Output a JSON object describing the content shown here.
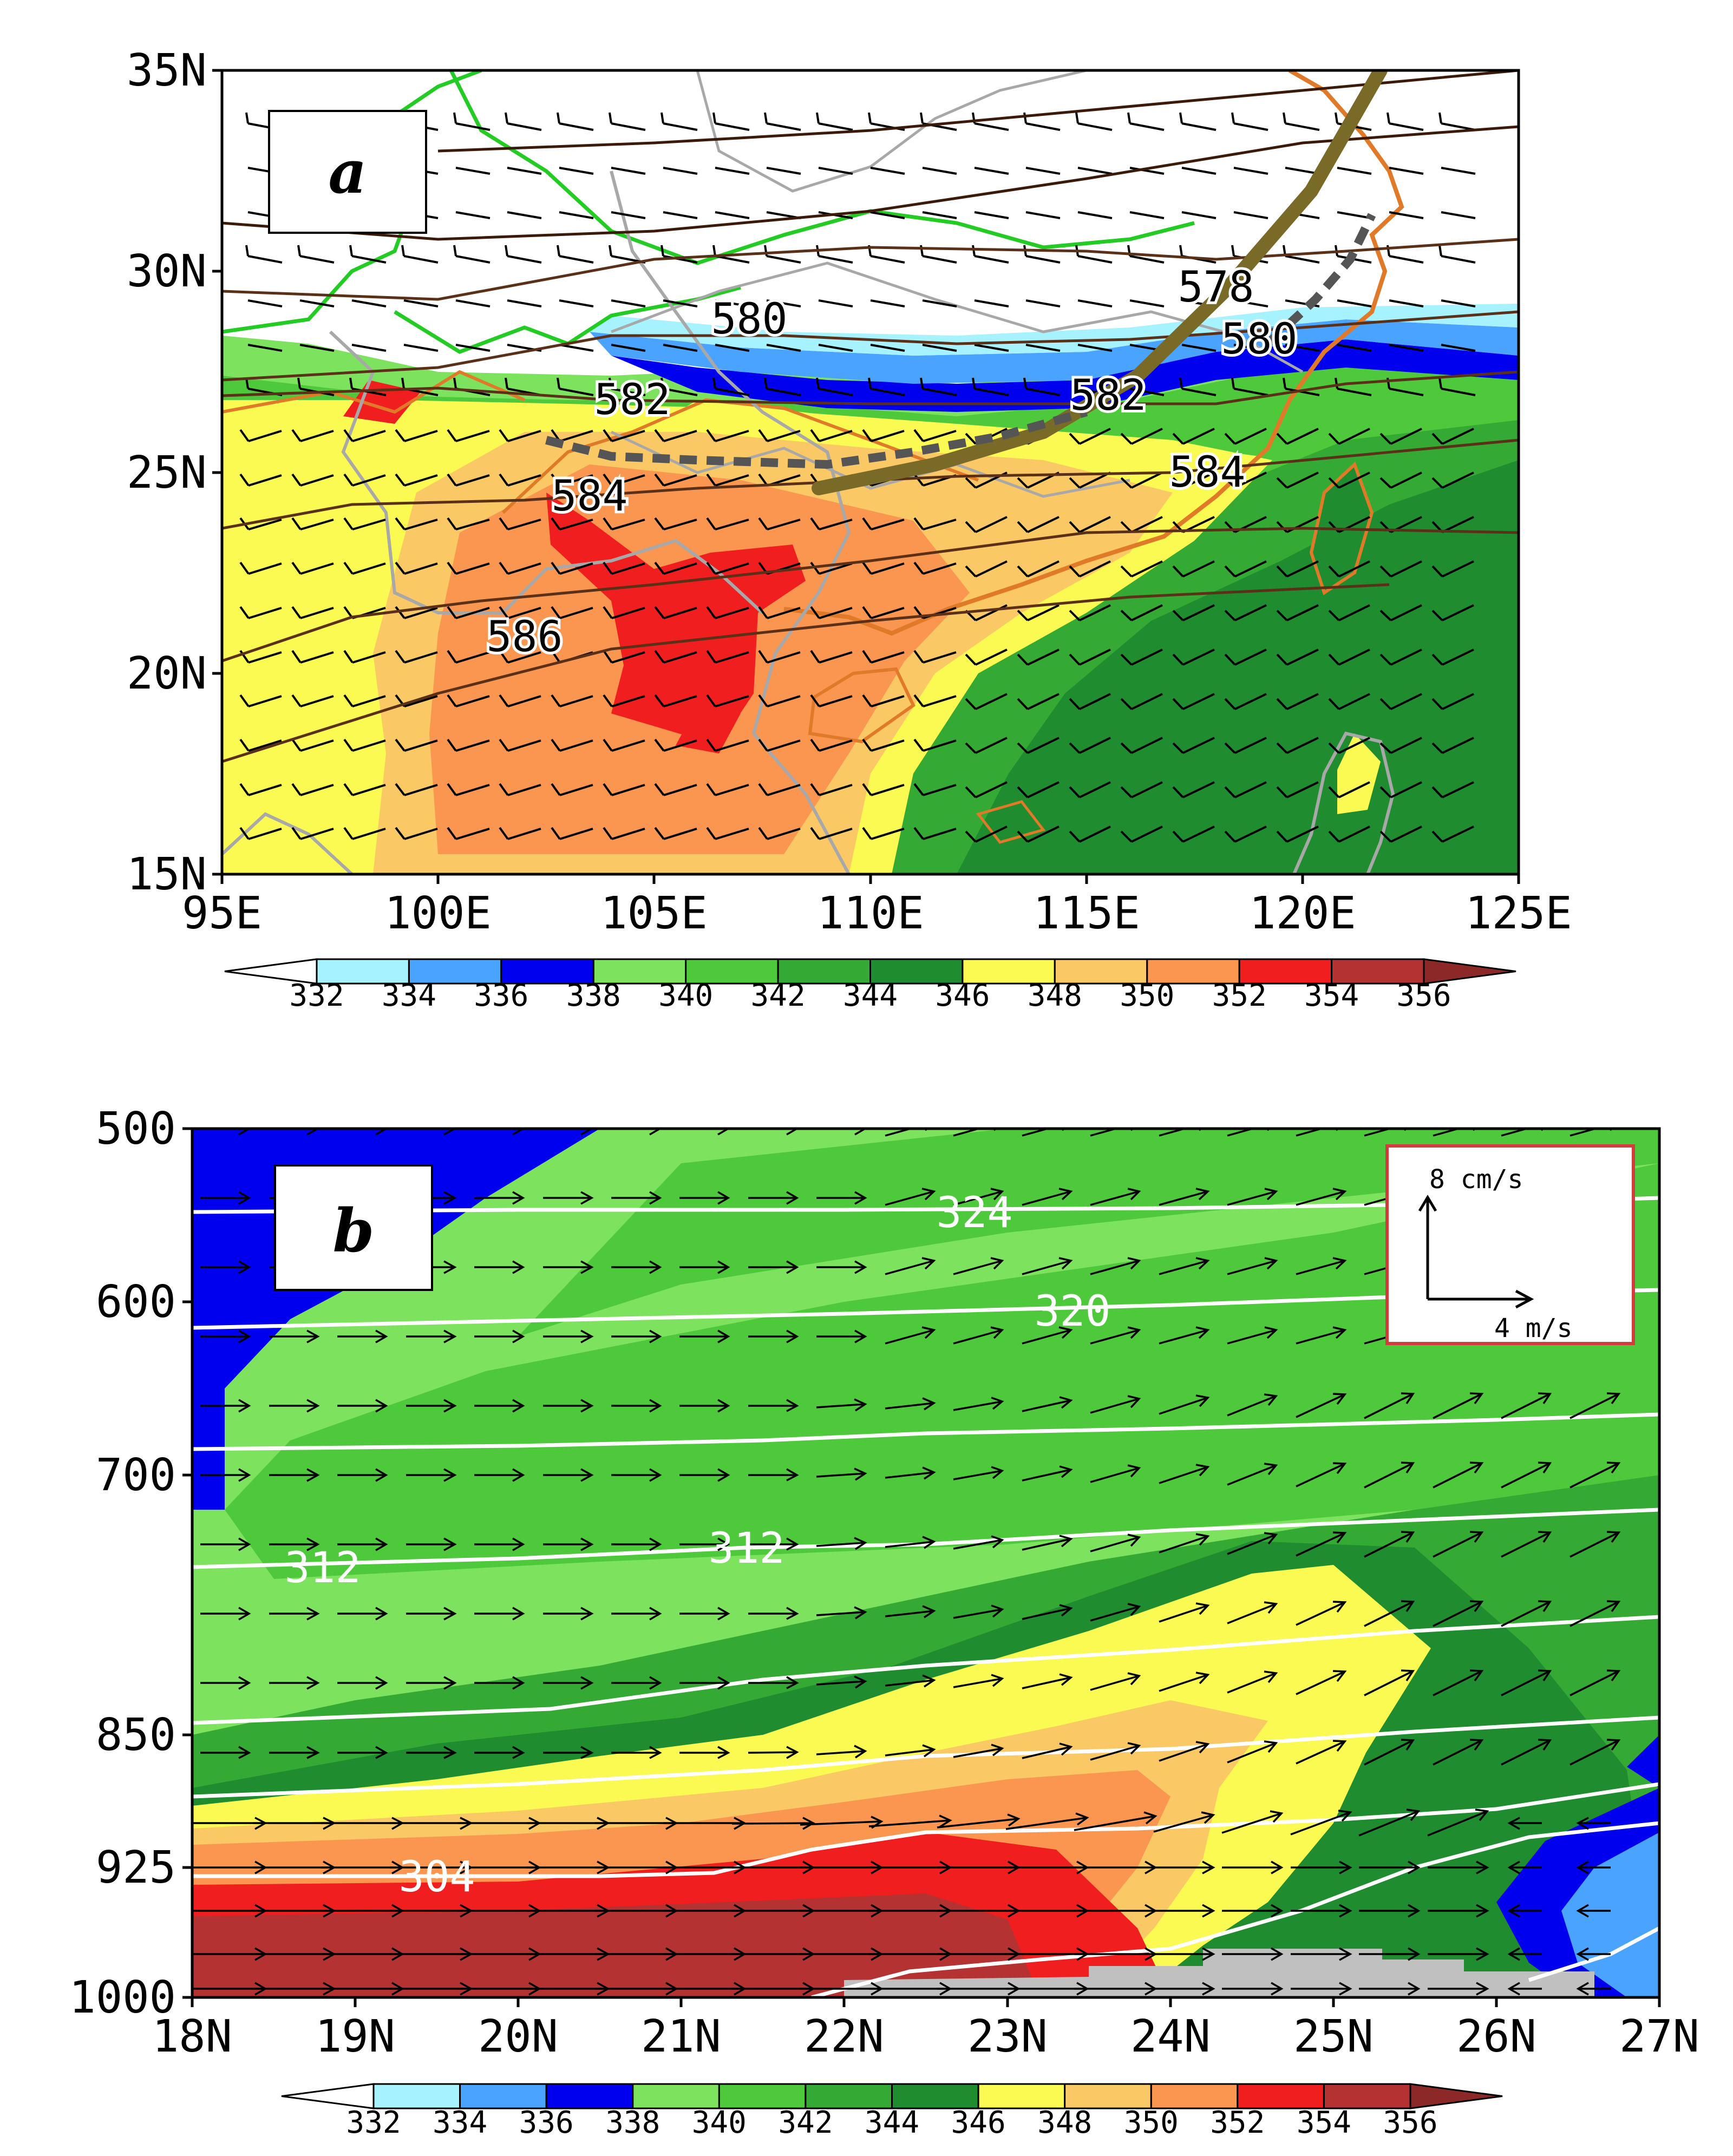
{
  "panel_a": {
    "label": "a",
    "lat_ticks": [
      "15N",
      "20N",
      "25N",
      "30N",
      "35N"
    ],
    "lon_ticks": [
      "95E",
      "100E",
      "105E",
      "110E",
      "115E",
      "120E",
      "125E"
    ],
    "contour_labels": [
      "578",
      "580",
      "580",
      "582",
      "582",
      "584",
      "584",
      "586"
    ],
    "colorbar_ticks": [
      "332",
      "334",
      "336",
      "338",
      "340",
      "342",
      "344",
      "346",
      "348",
      "350",
      "352",
      "354",
      "356"
    ]
  },
  "panel_b": {
    "label": "b",
    "pressure_ticks": [
      "500",
      "600",
      "700",
      "850",
      "925",
      "1000"
    ],
    "lat_ticks": [
      "18N",
      "19N",
      "20N",
      "21N",
      "22N",
      "23N",
      "24N",
      "25N",
      "26N",
      "27N"
    ],
    "contour_labels": [
      "324",
      "320",
      "312",
      "312",
      "304"
    ],
    "vector_key": {
      "vertical": "8 cm/s",
      "horizontal": "4 m/s"
    },
    "colorbar_ticks": [
      "332",
      "334",
      "336",
      "338",
      "340",
      "342",
      "344",
      "346",
      "348",
      "350",
      "352",
      "354",
      "356"
    ]
  },
  "colors": {
    "under": "#ffffff",
    "levels": [
      "#a6f2ff",
      "#4aa4ff",
      "#0000ee",
      "#7de35f",
      "#4fc93c",
      "#34aa34",
      "#1e8c2f",
      "#fafa52",
      "#fac864",
      "#fa9650",
      "#f01e1e",
      "#b43232"
    ],
    "over": "#8c2828",
    "terrain": "#c0c0c0",
    "trough": "#7a6a28",
    "height_contour": "#5a3018",
    "coast": "#e07a28",
    "plateau": "#22cc22",
    "border": "#a8a8a8",
    "key_box": "#d23c3c"
  },
  "chart_data": [
    {
      "type": "heatmap",
      "panel": "a",
      "variable": "equivalent potential temperature (K) with 500-hPa geopotential height contours and wind barbs",
      "x_range": [
        95,
        125
      ],
      "y_range": [
        15,
        35
      ],
      "color_levels": [
        332,
        334,
        336,
        338,
        340,
        342,
        344,
        346,
        348,
        350,
        352,
        354,
        356
      ],
      "height_contours": [
        578,
        580,
        582,
        584,
        586
      ],
      "height_label_positions": [
        {
          "value": 578,
          "lon": 118,
          "lat": 29.6
        },
        {
          "value": 580,
          "lon": 107.2,
          "lat": 28.8
        },
        {
          "value": 580,
          "lon": 119,
          "lat": 28.3
        },
        {
          "value": 582,
          "lon": 104.5,
          "lat": 26.8
        },
        {
          "value": 582,
          "lon": 115.5,
          "lat": 26.9
        },
        {
          "value": 584,
          "lon": 103.5,
          "lat": 24.4
        },
        {
          "value": 584,
          "lon": 117.8,
          "lat": 25
        },
        {
          "value": 586,
          "lon": 102,
          "lat": 20.9
        }
      ]
    },
    {
      "type": "heatmap",
      "panel": "b",
      "variable": "latitude-pressure cross section of equivalent potential temperature (K), potential temperature contours and circulation vectors",
      "x_range": [
        18,
        27
      ],
      "y_range": [
        1000,
        500
      ],
      "pressure_levels": [
        500,
        600,
        700,
        850,
        925,
        1000
      ],
      "color_levels": [
        332,
        334,
        336,
        338,
        340,
        342,
        344,
        346,
        348,
        350,
        352,
        354,
        356
      ],
      "theta_contours": [
        304,
        312,
        320,
        324
      ],
      "theta_label_positions": [
        {
          "value": 324,
          "lat": 22.8,
          "p": 548
        },
        {
          "value": 320,
          "lat": 23.4,
          "p": 605
        },
        {
          "value": 312,
          "lat": 18.8,
          "p": 753
        },
        {
          "value": 312,
          "lat": 21.4,
          "p": 742
        },
        {
          "value": 304,
          "lat": 19.5,
          "p": 930
        }
      ],
      "vector_scale": {
        "vertical": "8 cm/s",
        "horizontal": "4 m/s"
      }
    }
  ]
}
